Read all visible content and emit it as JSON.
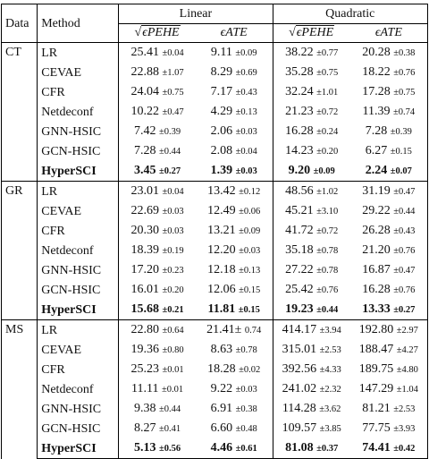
{
  "headers": {
    "data": "Data",
    "method": "Method",
    "linear": "Linear",
    "quadratic": "Quadratic",
    "pehe": "ϵPEHE",
    "ate": "ϵATE"
  },
  "groups": [
    {
      "name": "CT",
      "rows": [
        {
          "method": "LR",
          "v": [
            "25.41",
            "9.11",
            "38.22",
            "20.28"
          ],
          "s": [
            "±0.04",
            "±0.09",
            "±0.77",
            "±0.38"
          ],
          "bold": false
        },
        {
          "method": "CEVAE",
          "v": [
            "22.88",
            "8.29",
            "35.28",
            "18.22"
          ],
          "s": [
            "±1.07",
            "±0.69",
            "±0.75",
            "±0.76"
          ],
          "bold": false
        },
        {
          "method": "CFR",
          "v": [
            "24.04",
            "7.17",
            "32.24",
            "17.28"
          ],
          "s": [
            "±0.75",
            "±0.43",
            "±1.01",
            "±0.75"
          ],
          "bold": false
        },
        {
          "method": "Netdeconf",
          "v": [
            "10.22",
            "4.29",
            "21.23",
            "11.39"
          ],
          "s": [
            "±0.47",
            "±0.13",
            "±0.72",
            "±0.74"
          ],
          "bold": false
        },
        {
          "method": "GNN-HSIC",
          "v": [
            "7.42",
            "2.06",
            "16.28",
            "7.28"
          ],
          "s": [
            "±0.39",
            "±0.03",
            "±0.24",
            "±0.39"
          ],
          "bold": false
        },
        {
          "method": "GCN-HSIC",
          "v": [
            "7.28",
            "2.08",
            "14.23",
            "6.27"
          ],
          "s": [
            "±0.44",
            "±0.04",
            "±0.20",
            "±0.15"
          ],
          "bold": false
        },
        {
          "method": "HyperSCI",
          "v": [
            "3.45",
            "1.39",
            "9.20",
            "2.24"
          ],
          "s": [
            "±0.27",
            "±0.03",
            "±0.09",
            "±0.07"
          ],
          "bold": true
        }
      ]
    },
    {
      "name": "GR",
      "rows": [
        {
          "method": "LR",
          "v": [
            "23.01",
            "13.42",
            "48.56",
            "31.19"
          ],
          "s": [
            "±0.04",
            "±0.12",
            "±1.02",
            "±0.47"
          ],
          "bold": false
        },
        {
          "method": "CEVAE",
          "v": [
            "22.69",
            "12.49",
            "45.21",
            "29.22"
          ],
          "s": [
            "±0.03",
            "±0.06",
            "±3.10",
            "±0.44"
          ],
          "bold": false
        },
        {
          "method": "CFR",
          "v": [
            "20.30",
            "13.21",
            "41.72",
            "26.28"
          ],
          "s": [
            "±0.03",
            "±0.09",
            "±0.72",
            "±0.43"
          ],
          "bold": false
        },
        {
          "method": "Netdeconf",
          "v": [
            "18.39",
            "12.20",
            "35.18",
            "21.20"
          ],
          "s": [
            "±0.19",
            "±0.03",
            "±0.78",
            "±0.76"
          ],
          "bold": false
        },
        {
          "method": "GNN-HSIC",
          "v": [
            "17.20",
            "12.18",
            "27.22",
            "16.87"
          ],
          "s": [
            "±0.23",
            "±0.13",
            "±0.78",
            "±0.47"
          ],
          "bold": false
        },
        {
          "method": "GCN-HSIC",
          "v": [
            "16.01",
            "12.06",
            "25.42",
            "16.28"
          ],
          "s": [
            "±0.20",
            "±0.15",
            "±0.76",
            "±0.76"
          ],
          "bold": false
        },
        {
          "method": "HyperSCI",
          "v": [
            "15.68",
            "11.81",
            "19.23",
            "13.33"
          ],
          "s": [
            "±0.21",
            "±0.15",
            "±0.44",
            "±0.27"
          ],
          "bold": true
        }
      ]
    },
    {
      "name": "MS",
      "rows": [
        {
          "method": "LR",
          "v": [
            "22.80",
            "21.41±",
            "414.17",
            "192.80"
          ],
          "s": [
            "±0.64",
            "0.74",
            "±3.94",
            "±2.97"
          ],
          "bold": false
        },
        {
          "method": "CEVAE",
          "v": [
            "19.36",
            "8.63",
            "315.01",
            "188.47"
          ],
          "s": [
            "±0.80",
            "±0.78",
            "±2.53",
            "±4.27"
          ],
          "bold": false
        },
        {
          "method": "CFR",
          "v": [
            "25.23",
            "18.28",
            "392.56",
            "189.75"
          ],
          "s": [
            "±0.01",
            "±0.02",
            "±4.33",
            "±4.80"
          ],
          "bold": false
        },
        {
          "method": "Netdeconf",
          "v": [
            "11.11",
            "9.22",
            "241.02",
            "147.29"
          ],
          "s": [
            "±0.01",
            "±0.03",
            "±2.32",
            "±1.04"
          ],
          "bold": false
        },
        {
          "method": "GNN-HSIC",
          "v": [
            "9.38",
            "6.91",
            "114.28",
            "81.21"
          ],
          "s": [
            "±0.44",
            "±0.38",
            "±3.62",
            "±2.53"
          ],
          "bold": false
        },
        {
          "method": "GCN-HSIC",
          "v": [
            "8.27",
            "6.60",
            "109.57",
            "77.75"
          ],
          "s": [
            "±0.41",
            "±0.48",
            "±3.85",
            "±3.93"
          ],
          "bold": false
        },
        {
          "method": "HyperSCI",
          "v": [
            "5.13",
            "4.46",
            "81.08",
            "74.41"
          ],
          "s": [
            "±0.56",
            "±0.61",
            "±0.37",
            "±0.42"
          ],
          "bold": true
        }
      ]
    }
  ]
}
